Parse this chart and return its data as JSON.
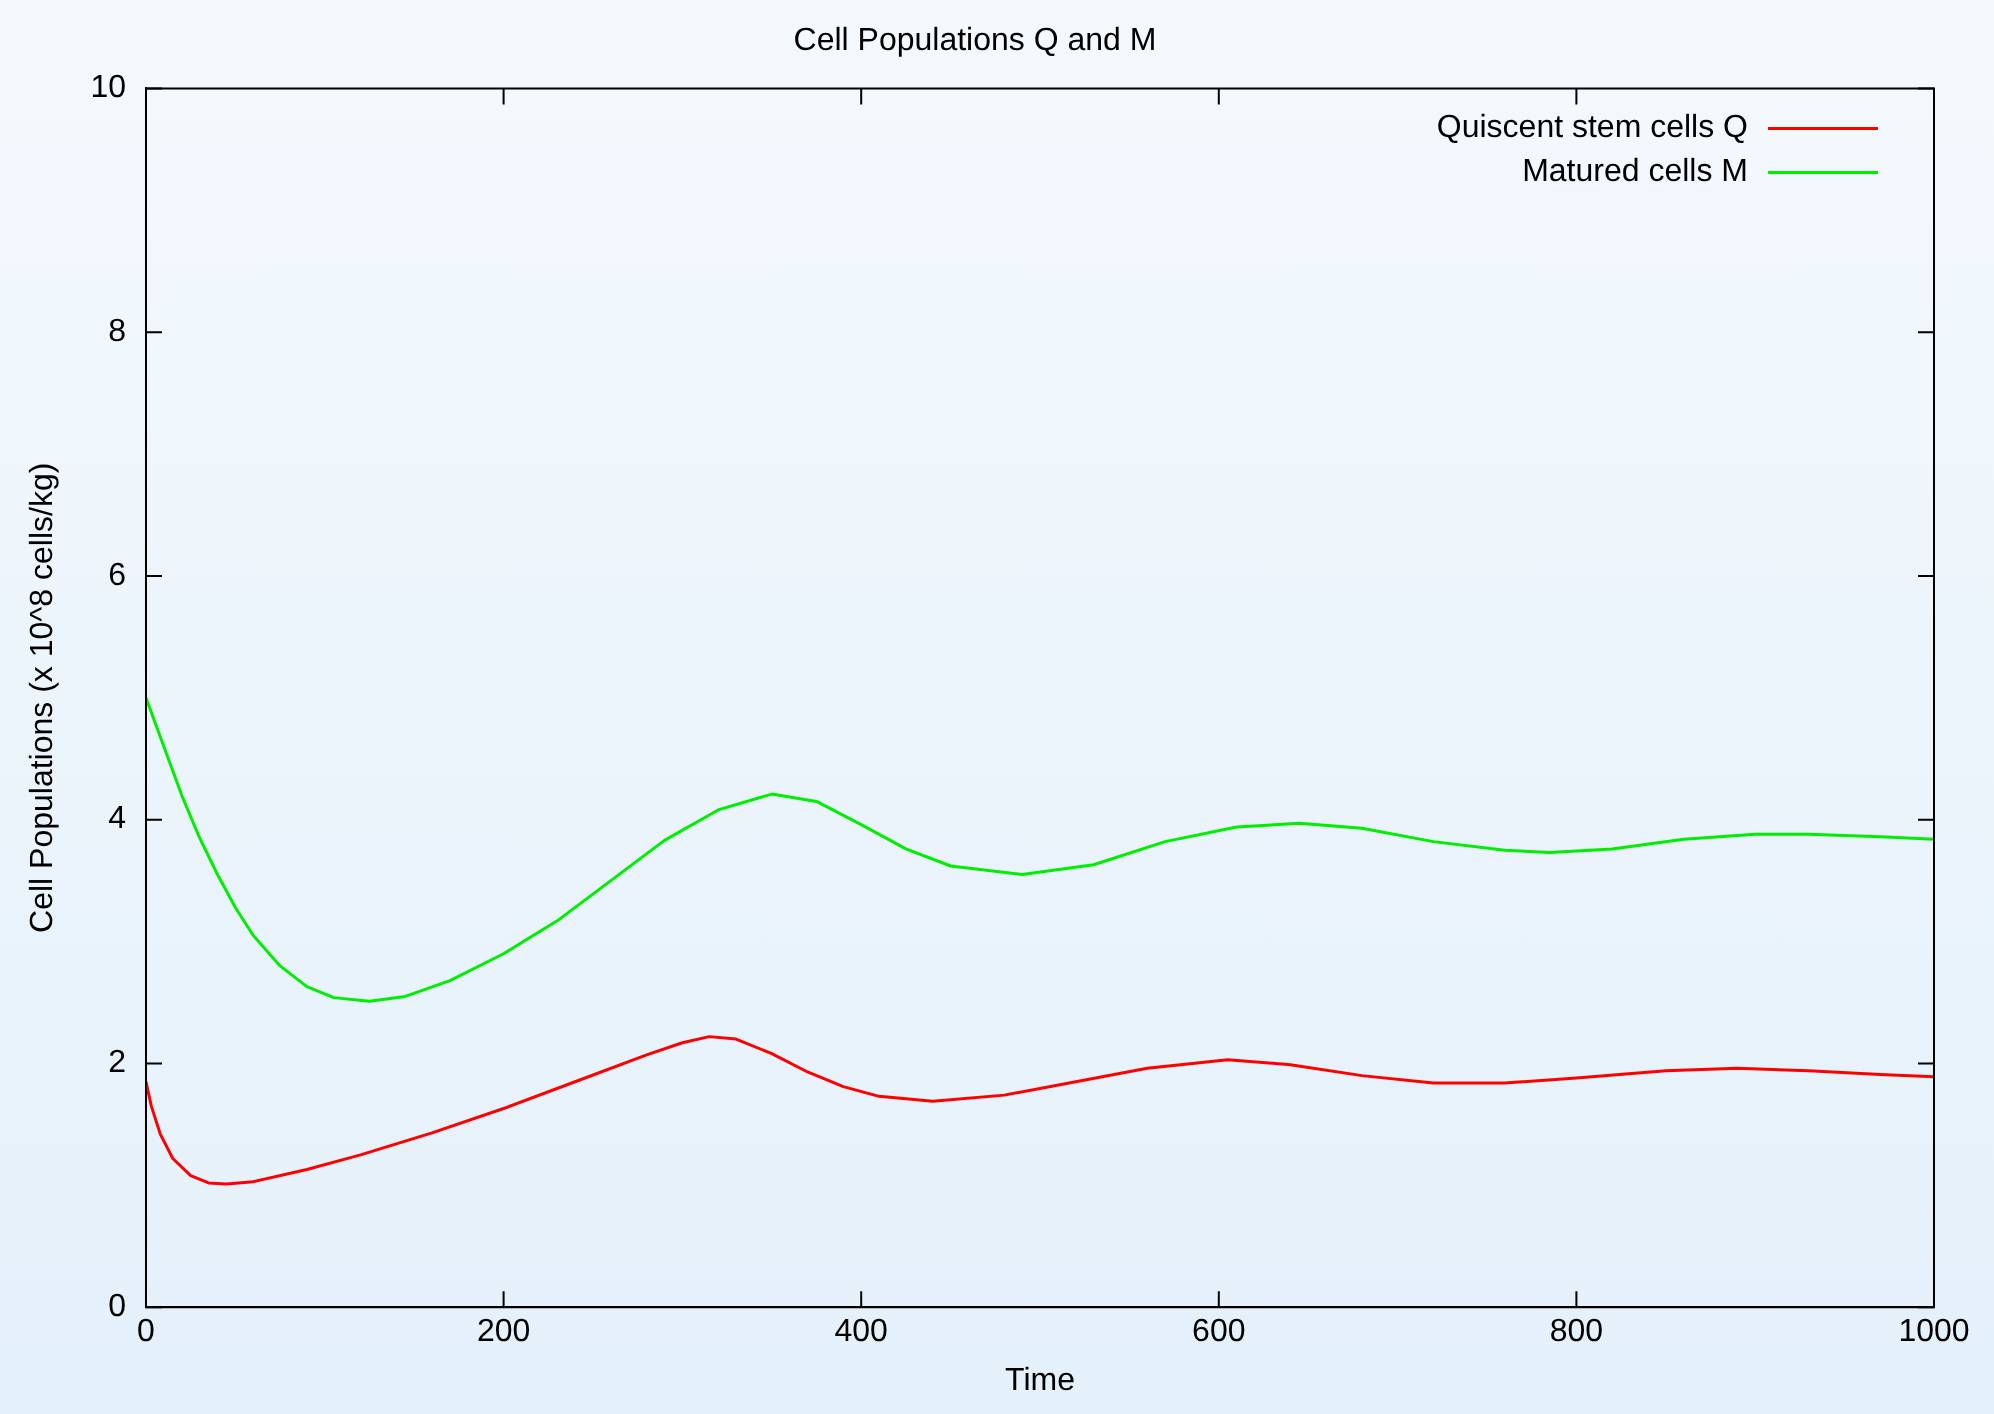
{
  "chart_data": {
    "type": "line",
    "title": "Cell Populations Q and M",
    "xlabel": "Time",
    "ylabel": "Cell Populations (x 10^8 cells/kg)",
    "xlim": [
      0,
      1000
    ],
    "xticks": [
      0,
      200,
      400,
      600,
      800,
      1000
    ],
    "ylim": [
      0,
      10
    ],
    "yticks": [
      0,
      2,
      4,
      6,
      8,
      10
    ],
    "grid": false,
    "legend": "top right",
    "marker": "none",
    "series": [
      {
        "name": "Quiscent stem cells Q",
        "color": "#ff0000",
        "x": [
          0,
          3,
          8,
          15,
          25,
          35,
          45,
          60,
          90,
          120,
          160,
          200,
          240,
          280,
          300,
          315,
          330,
          350,
          370,
          390,
          410,
          440,
          480,
          520,
          560,
          605,
          640,
          680,
          720,
          760,
          800,
          850,
          890,
          930,
          970,
          1000
        ],
        "values": [
          1.85,
          1.65,
          1.42,
          1.22,
          1.08,
          1.02,
          1.01,
          1.03,
          1.13,
          1.25,
          1.43,
          1.63,
          1.85,
          2.07,
          2.17,
          2.22,
          2.2,
          2.08,
          1.93,
          1.81,
          1.73,
          1.69,
          1.74,
          1.85,
          1.96,
          2.03,
          1.99,
          1.9,
          1.84,
          1.84,
          1.88,
          1.94,
          1.96,
          1.94,
          1.91,
          1.89
        ]
      },
      {
        "name": "Matured cells M",
        "color": "#00ee00",
        "x": [
          0,
          10,
          20,
          30,
          40,
          50,
          60,
          75,
          90,
          105,
          125,
          145,
          170,
          200,
          230,
          260,
          290,
          320,
          350,
          375,
          400,
          425,
          450,
          490,
          530,
          570,
          610,
          645,
          680,
          720,
          760,
          785,
          820,
          860,
          900,
          930,
          970,
          1000
        ],
        "values": [
          5.0,
          4.6,
          4.2,
          3.85,
          3.55,
          3.28,
          3.05,
          2.8,
          2.63,
          2.54,
          2.51,
          2.55,
          2.68,
          2.9,
          3.17,
          3.5,
          3.83,
          4.08,
          4.21,
          4.15,
          3.96,
          3.76,
          3.62,
          3.55,
          3.63,
          3.82,
          3.94,
          3.97,
          3.93,
          3.82,
          3.75,
          3.73,
          3.76,
          3.84,
          3.88,
          3.88,
          3.86,
          3.84
        ]
      }
    ]
  }
}
